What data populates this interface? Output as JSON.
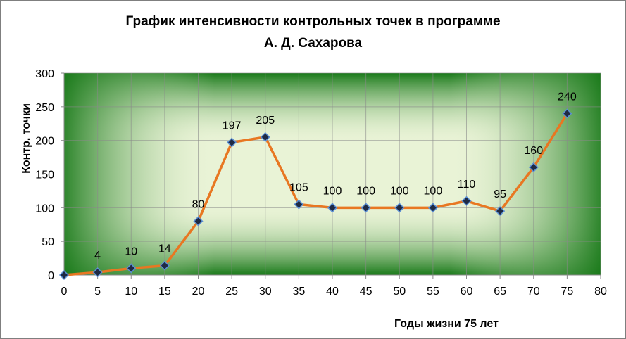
{
  "chart_data": {
    "type": "line",
    "title_line1": "График интенсивности контрольных точек   в программе",
    "title_line2": "А. Д. Сахарова",
    "xlabel": "Годы жизни 75 лет",
    "ylabel": "Контр. точки",
    "xlim": [
      0,
      80
    ],
    "ylim": [
      0,
      300
    ],
    "x_ticks": [
      "0",
      "5",
      "10",
      "15",
      "20",
      "25",
      "30",
      "35",
      "40",
      "45",
      "50",
      "55",
      "60",
      "65",
      "70",
      "75",
      "80"
    ],
    "y_ticks": [
      "0",
      "50",
      "100",
      "150",
      "200",
      "250",
      "300"
    ],
    "grid": true,
    "x": [
      0,
      5,
      10,
      15,
      20,
      25,
      30,
      35,
      40,
      45,
      50,
      55,
      60,
      65,
      70,
      75
    ],
    "values": [
      0,
      4,
      10,
      14,
      80,
      197,
      205,
      105,
      100,
      100,
      100,
      100,
      110,
      95,
      160,
      240
    ],
    "data_labels": [
      "",
      "4",
      "10",
      "14",
      "80",
      "197",
      "205",
      "105",
      "100",
      "100",
      "100",
      "100",
      "110",
      "95",
      "160",
      "240"
    ],
    "colors": {
      "line": "#e87722",
      "marker_fill": "#1f2a44",
      "marker_stroke": "#5b8fd6",
      "plot_bg_outer": "#1a7a1a",
      "plot_bg_inner": "#e9f3d6"
    }
  }
}
